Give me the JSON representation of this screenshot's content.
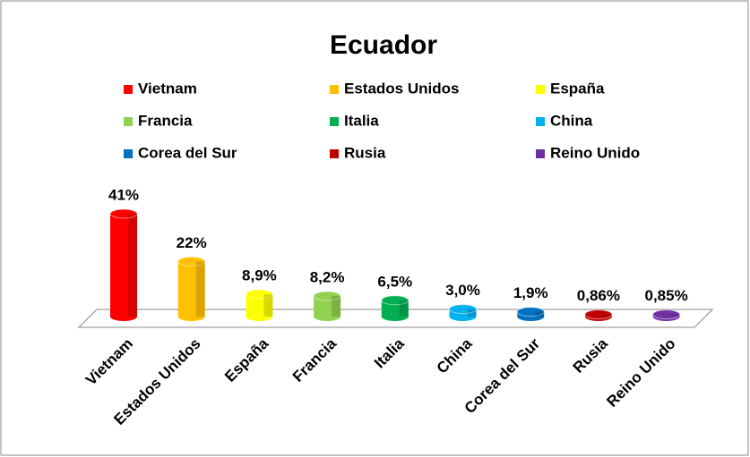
{
  "chart_data": {
    "type": "bar",
    "title": "Ecuador",
    "categories": [
      "Vietnam",
      "Estados Unidos",
      "España",
      "Francia",
      "Italia",
      "China",
      "Corea del Sur",
      "Rusia",
      "Reino Unido"
    ],
    "values": [
      41,
      22,
      8.9,
      8.2,
      6.5,
      3.0,
      1.9,
      0.86,
      0.85
    ],
    "value_labels": [
      "41%",
      "22%",
      "8,9%",
      "8,2%",
      "6,5%",
      "3,0%",
      "1,9%",
      "0,86%",
      "0,85%"
    ],
    "colors": [
      "#ff0000",
      "#ffc000",
      "#ffff00",
      "#92d050",
      "#00b050",
      "#00b0f0",
      "#0070c0",
      "#c00000",
      "#7030a0"
    ],
    "legend": "top"
  }
}
